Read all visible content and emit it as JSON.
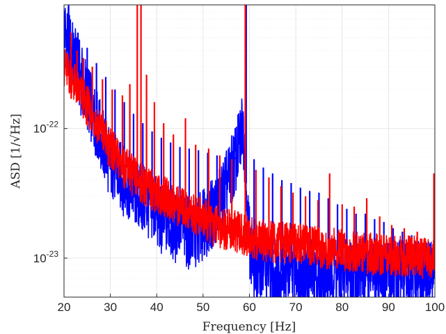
{
  "chart_data": {
    "type": "line",
    "xlabel": "Frequency [Hz]",
    "ylabel": "ASD [1/√Hz]",
    "xlim": [
      20,
      100
    ],
    "ylim": [
      5e-24,
      9e-22
    ],
    "yscale": "log",
    "grid": true,
    "x_ticks": [
      20,
      30,
      40,
      50,
      60,
      70,
      80,
      90,
      100
    ],
    "x_tick_labels": [
      "20",
      "30",
      "40",
      "50",
      "60",
      "70",
      "80",
      "90",
      "100"
    ],
    "y_ticks": [
      {
        "value": 1e-22,
        "mantissa": "10",
        "exponent": "-22"
      },
      {
        "value": 1e-23,
        "mantissa": "10",
        "exponent": "-23"
      }
    ],
    "series": [
      {
        "color": "#0000ff",
        "x": [
          20,
          21,
          22,
          23,
          24,
          25,
          26,
          27,
          28,
          29,
          30,
          32,
          34,
          35,
          36,
          38,
          40,
          41,
          42,
          44,
          45,
          46,
          48,
          50,
          52,
          54,
          56,
          57,
          58,
          58.5,
          59,
          59.5,
          60,
          60.5,
          61,
          62,
          64,
          65,
          66,
          68,
          70,
          72,
          74,
          75,
          76,
          78,
          80,
          82,
          84,
          86,
          88,
          90,
          92,
          94,
          96,
          98,
          100
        ],
        "y": [
          6e-22,
          4.5e-22,
          3.5e-22,
          2.8e-22,
          2.2e-22,
          1.8e-22,
          1.4e-22,
          1.1e-22,
          8.5e-23,
          6.5e-23,
          5.5e-23,
          4.3e-23,
          3.6e-23,
          3.3e-23,
          3e-23,
          2.6e-23,
          2.3e-23,
          1.9e-23,
          2e-23,
          1.7e-23,
          2e-23,
          1.6e-23,
          1.5e-23,
          1.8e-23,
          2.2e-23,
          3e-23,
          4.5e-23,
          5.8e-23,
          8e-23,
          1.15e-22,
          7e-23,
          2.5e-23,
          1.4e-23,
          1e-23,
          8.8e-24,
          8.2e-24,
          8e-24,
          7.6e-24,
          7.9e-24,
          8e-24,
          8.8e-24,
          7.8e-24,
          7.4e-24,
          6.5e-24,
          7.5e-24,
          7.8e-24,
          7.8e-24,
          7.6e-24,
          7.6e-24,
          7.6e-24,
          7.5e-24,
          7.4e-24,
          7.4e-24,
          7.3e-24,
          7.2e-24,
          7.1e-24,
          7e-24
        ],
        "lines": [
          {
            "x": 21,
            "peak": 9e-22
          },
          {
            "x": 23,
            "peak": 5.5e-22
          },
          {
            "x": 25,
            "peak": 4.2e-22
          },
          {
            "x": 27,
            "peak": 3.2e-22
          },
          {
            "x": 29,
            "peak": 2.5e-22
          },
          {
            "x": 31,
            "peak": 2e-22
          },
          {
            "x": 33,
            "peak": 1.6e-22
          },
          {
            "x": 35,
            "peak": 1.3e-22
          },
          {
            "x": 37,
            "peak": 1.1e-22
          },
          {
            "x": 39,
            "peak": 9.5e-23
          },
          {
            "x": 41,
            "peak": 8.5e-23
          },
          {
            "x": 43,
            "peak": 7.8e-23
          },
          {
            "x": 45,
            "peak": 7.2e-23
          },
          {
            "x": 47,
            "peak": 7e-23
          },
          {
            "x": 49,
            "peak": 6.8e-23
          },
          {
            "x": 51,
            "peak": 6.5e-23
          },
          {
            "x": 53,
            "peak": 6.2e-23
          },
          {
            "x": 55,
            "peak": 6e-23
          },
          {
            "x": 57,
            "peak": 6e-23
          },
          {
            "x": 59.3,
            "peak": 9e-22
          },
          {
            "x": 61,
            "peak": 5.8e-23
          },
          {
            "x": 63,
            "peak": 5e-23
          },
          {
            "x": 65,
            "peak": 4.5e-23
          },
          {
            "x": 67,
            "peak": 4e-23
          },
          {
            "x": 69,
            "peak": 3.8e-23
          },
          {
            "x": 71,
            "peak": 3.5e-23
          },
          {
            "x": 73,
            "peak": 3.3e-23
          },
          {
            "x": 75,
            "peak": 3.2e-23
          },
          {
            "x": 77,
            "peak": 2.9e-23
          },
          {
            "x": 79,
            "peak": 2.6e-23
          },
          {
            "x": 81,
            "peak": 2.4e-23
          },
          {
            "x": 83,
            "peak": 2.2e-23
          },
          {
            "x": 85,
            "peak": 2.2e-23
          },
          {
            "x": 87,
            "peak": 2e-23
          },
          {
            "x": 89,
            "peak": 1.9e-23
          },
          {
            "x": 91,
            "peak": 1.7e-23
          },
          {
            "x": 93,
            "peak": 1.6e-23
          },
          {
            "x": 95,
            "peak": 1.5e-23
          },
          {
            "x": 97,
            "peak": 1.4e-23
          },
          {
            "x": 99,
            "peak": 1.3e-23
          }
        ]
      },
      {
        "color": "#ff0000",
        "x": [
          20,
          21,
          22,
          23,
          24,
          25,
          26,
          27,
          28,
          29,
          30,
          32,
          34,
          36,
          38,
          40,
          42,
          44,
          46,
          48,
          50,
          52,
          54,
          56,
          57,
          58,
          59,
          60,
          61,
          62,
          64,
          66,
          68,
          70,
          72,
          74,
          76,
          78,
          80,
          82,
          84,
          86,
          88,
          90,
          92,
          94,
          96,
          98,
          100
        ],
        "y": [
          3e-22,
          2.6e-22,
          2.3e-22,
          2e-22,
          1.75e-22,
          1.5e-22,
          1.3e-22,
          1.12e-22,
          9.5e-23,
          8.2e-23,
          7e-23,
          5.6e-23,
          4.6e-23,
          4e-23,
          3.5e-23,
          3.2e-23,
          2.9e-23,
          2.6e-23,
          2.4e-23,
          2.2e-23,
          2e-23,
          1.8e-23,
          1.7e-23,
          1.65e-23,
          1.6e-23,
          1.55e-23,
          1.5e-23,
          1.45e-23,
          1.4e-23,
          1.38e-23,
          1.35e-23,
          1.32e-23,
          1.3e-23,
          1.3e-23,
          1.28e-23,
          1.25e-23,
          1.2e-23,
          1.18e-23,
          1.15e-23,
          1.12e-23,
          1.1e-23,
          1.08e-23,
          1.06e-23,
          1.05e-23,
          1.04e-23,
          1.03e-23,
          1.02e-23,
          1e-23,
          1e-23
        ],
        "lines": [
          {
            "x": 21.5,
            "peak": 5.5e-22
          },
          {
            "x": 22.8,
            "peak": 4e-22
          },
          {
            "x": 24.2,
            "peak": 3.5e-22
          },
          {
            "x": 26.1,
            "peak": 3e-22
          },
          {
            "x": 28.3,
            "peak": 2.4e-22
          },
          {
            "x": 30.4,
            "peak": 2e-22
          },
          {
            "x": 32.6,
            "peak": 1.8e-22
          },
          {
            "x": 34.2,
            "peak": 2.2e-22
          },
          {
            "x": 35.8,
            "peak": 9e-22
          },
          {
            "x": 36.6,
            "peak": 9e-22
          },
          {
            "x": 37.8,
            "peak": 2.6e-22
          },
          {
            "x": 39.5,
            "peak": 1.6e-22
          },
          {
            "x": 41.5,
            "peak": 1.1e-22
          },
          {
            "x": 43.6,
            "peak": 9e-23
          },
          {
            "x": 46.2,
            "peak": 1.2e-22
          },
          {
            "x": 48.4,
            "peak": 7.5e-23
          },
          {
            "x": 51.2,
            "peak": 7e-23
          },
          {
            "x": 53.6,
            "peak": 6.2e-23
          },
          {
            "x": 56.2,
            "peak": 5.8e-23
          },
          {
            "x": 59.1,
            "peak": 9e-22
          },
          {
            "x": 61.4,
            "peak": 4.8e-23
          },
          {
            "x": 64.2,
            "peak": 4.2e-23
          },
          {
            "x": 66.8,
            "peak": 3.6e-23
          },
          {
            "x": 69.4,
            "peak": 3.2e-23
          },
          {
            "x": 72.1,
            "peak": 3e-23
          },
          {
            "x": 74.8,
            "peak": 2.8e-23
          },
          {
            "x": 77.3,
            "peak": 4.5e-23
          },
          {
            "x": 80.0,
            "peak": 2.6e-23
          },
          {
            "x": 82.6,
            "peak": 2.5e-23
          },
          {
            "x": 85.3,
            "peak": 2.9e-23
          },
          {
            "x": 88.1,
            "peak": 2.1e-23
          },
          {
            "x": 90.7,
            "peak": 1.8e-23
          },
          {
            "x": 93.4,
            "peak": 1.7e-23
          },
          {
            "x": 96.2,
            "peak": 1.6e-23
          },
          {
            "x": 99.8,
            "peak": 4.5e-23
          }
        ]
      }
    ]
  }
}
